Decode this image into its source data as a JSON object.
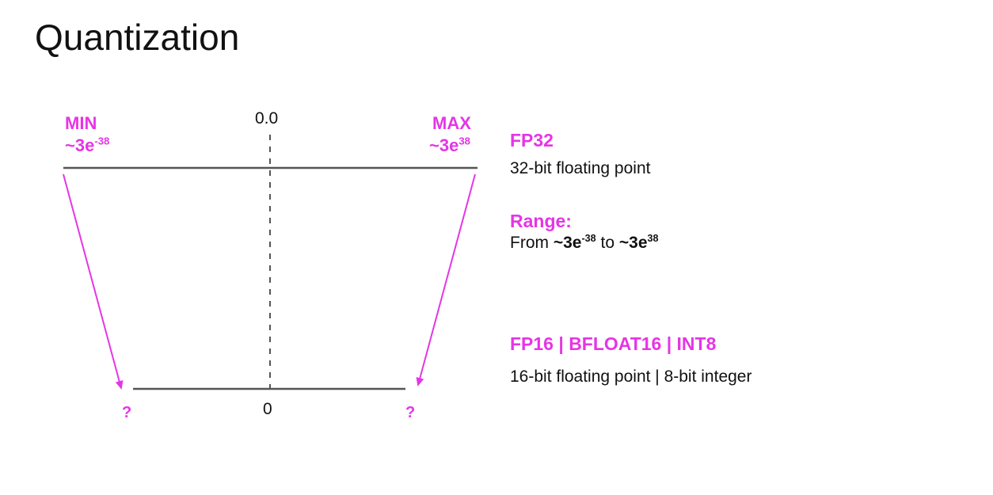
{
  "title": "Quantization",
  "diagram": {
    "min_label": "MIN",
    "min_value_base": "~3e",
    "min_value_exp": "-38",
    "max_label": "MAX",
    "max_value_base": "~3e",
    "max_value_exp": "38",
    "zero_top": "0.0",
    "zero_bottom": "0",
    "unknown_left": "?",
    "unknown_right": "?",
    "accent_color": "#e535e5",
    "line_color": "#555555"
  },
  "fp32": {
    "heading": "FP32",
    "description": "32-bit floating point",
    "range_heading": "Range:",
    "range_from": "From",
    "range_min_base": "~3e",
    "range_min_exp": "-38",
    "range_to": "to",
    "range_max_base": "~3e",
    "range_max_exp": "38"
  },
  "lower_formats": {
    "heading": "FP16 | BFLOAT16 | INT8",
    "description": "16-bit floating point | 8-bit integer"
  }
}
